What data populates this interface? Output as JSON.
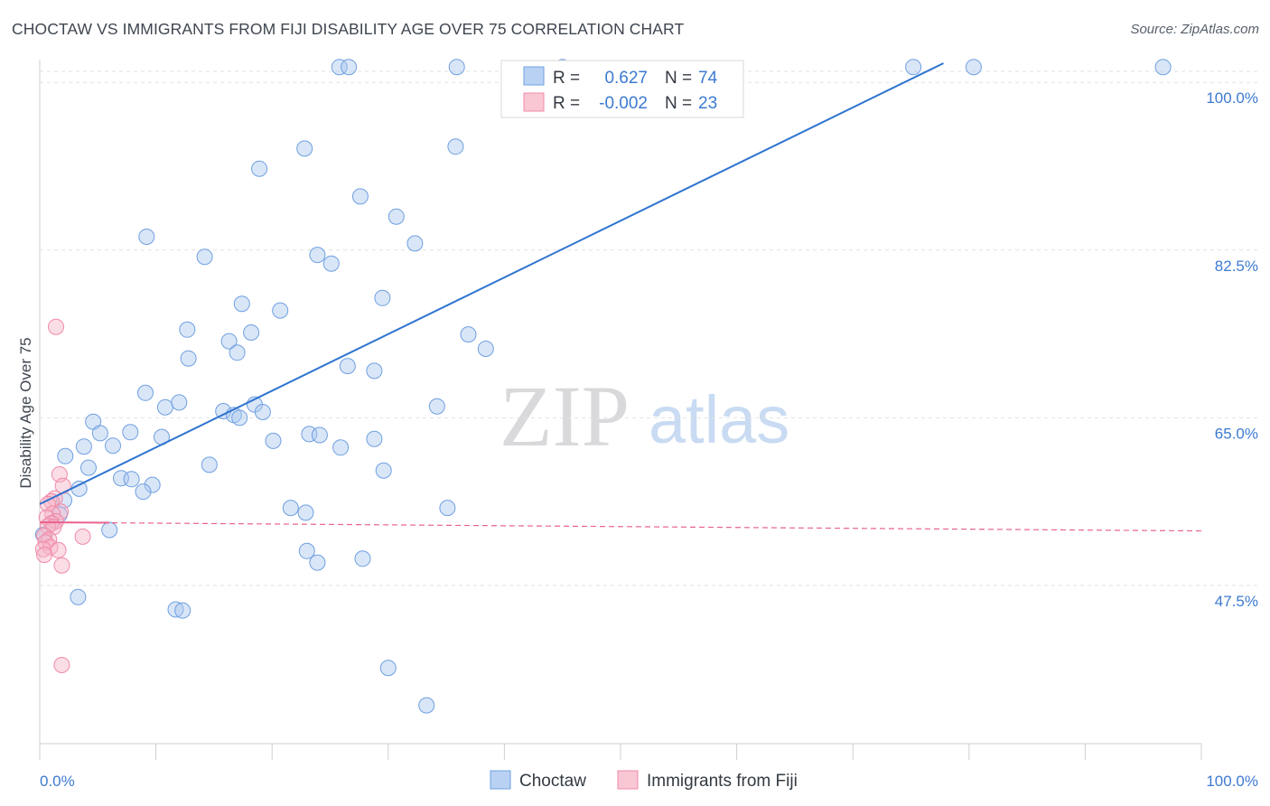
{
  "header": {
    "title": "CHOCTAW VS IMMIGRANTS FROM FIJI DISABILITY AGE OVER 75 CORRELATION CHART",
    "source": "Source: ZipAtlas.com"
  },
  "watermark": {
    "zip": "ZIP",
    "atlas": "atlas"
  },
  "legend_top": {
    "rows": [
      {
        "r_label": "R =",
        "r_value": "0.627",
        "n_label": "N =",
        "n_value": "74",
        "color": "#6fa0e0"
      },
      {
        "r_label": "R =",
        "r_value": "-0.002",
        "n_label": "N =",
        "n_value": "23",
        "color": "#f08aa8"
      }
    ]
  },
  "legend_bottom": {
    "items": [
      "Choctaw",
      "Immigrants from Fiji"
    ]
  },
  "chart_data": {
    "type": "scatter",
    "title": "CHOCTAW VS IMMIGRANTS FROM FIJI DISABILITY AGE OVER 75 CORRELATION CHART",
    "xlabel": "",
    "ylabel": "Disability Age Over 75",
    "xlim": [
      0,
      100
    ],
    "ylim": [
      31,
      102
    ],
    "x_tick_labels": [
      "0.0%",
      "100.0%"
    ],
    "y_tick_labels": [
      "47.5%",
      "65.0%",
      "82.5%",
      "100.0%"
    ],
    "y_ticks": [
      47.5,
      65.0,
      82.5,
      100.0
    ],
    "grid": true,
    "colors": {
      "choctaw": "#6fa0e0",
      "choctaw_line": "#2f74d0",
      "fiji": "#f08aa8",
      "fiji_line": "#e8638d"
    },
    "series": [
      {
        "name": "Choctaw",
        "r": 0.627,
        "n": 74,
        "trend": {
          "x": [
            0,
            77.8
          ],
          "y": [
            56.0,
            102.0
          ]
        },
        "points": [
          [
            25.8,
            101.6
          ],
          [
            26.6,
            101.6
          ],
          [
            35.9,
            101.6
          ],
          [
            45.0,
            101.6
          ],
          [
            75.2,
            101.6
          ],
          [
            80.4,
            101.6
          ],
          [
            96.7,
            101.6
          ],
          [
            22.8,
            93.1
          ],
          [
            35.8,
            93.3
          ],
          [
            18.9,
            91.0
          ],
          [
            27.6,
            88.1
          ],
          [
            30.7,
            86.0
          ],
          [
            9.2,
            83.9
          ],
          [
            32.3,
            83.2
          ],
          [
            14.2,
            81.8
          ],
          [
            23.9,
            82.0
          ],
          [
            25.1,
            81.1
          ],
          [
            29.5,
            77.5
          ],
          [
            17.4,
            76.9
          ],
          [
            20.7,
            76.2
          ],
          [
            12.7,
            74.2
          ],
          [
            16.3,
            73.0
          ],
          [
            18.2,
            73.9
          ],
          [
            36.9,
            73.7
          ],
          [
            38.4,
            72.2
          ],
          [
            17.0,
            71.8
          ],
          [
            12.8,
            71.2
          ],
          [
            26.5,
            70.4
          ],
          [
            28.8,
            69.9
          ],
          [
            9.1,
            67.6
          ],
          [
            10.8,
            66.1
          ],
          [
            12.0,
            66.6
          ],
          [
            15.8,
            65.7
          ],
          [
            16.7,
            65.3
          ],
          [
            18.5,
            66.4
          ],
          [
            19.2,
            65.6
          ],
          [
            17.2,
            65.0
          ],
          [
            34.2,
            66.2
          ],
          [
            4.6,
            64.6
          ],
          [
            5.2,
            63.4
          ],
          [
            7.8,
            63.5
          ],
          [
            10.5,
            63.0
          ],
          [
            20.1,
            62.6
          ],
          [
            14.6,
            60.1
          ],
          [
            23.2,
            63.3
          ],
          [
            24.1,
            63.2
          ],
          [
            3.8,
            62.0
          ],
          [
            6.3,
            62.1
          ],
          [
            25.9,
            61.9
          ],
          [
            28.8,
            62.8
          ],
          [
            2.2,
            61.0
          ],
          [
            4.2,
            59.8
          ],
          [
            29.6,
            59.5
          ],
          [
            7.0,
            58.7
          ],
          [
            7.9,
            58.6
          ],
          [
            9.7,
            58.0
          ],
          [
            3.4,
            57.6
          ],
          [
            2.1,
            56.4
          ],
          [
            8.9,
            57.3
          ],
          [
            35.1,
            55.6
          ],
          [
            1.7,
            54.9
          ],
          [
            21.6,
            55.6
          ],
          [
            22.9,
            55.1
          ],
          [
            1.0,
            54.0
          ],
          [
            6.0,
            53.3
          ],
          [
            23.0,
            51.1
          ],
          [
            27.8,
            50.3
          ],
          [
            23.9,
            49.9
          ],
          [
            3.3,
            46.3
          ],
          [
            11.7,
            45.0
          ],
          [
            12.3,
            44.9
          ],
          [
            30.0,
            38.9
          ],
          [
            33.3,
            35.0
          ],
          [
            0.3,
            52.8
          ]
        ]
      },
      {
        "name": "Immigrants from Fiji",
        "r": -0.002,
        "n": 23,
        "trend": {
          "x": [
            0,
            100
          ],
          "y": [
            54.1,
            53.2
          ]
        },
        "points": [
          [
            1.4,
            74.5
          ],
          [
            1.7,
            59.1
          ],
          [
            2.0,
            57.9
          ],
          [
            1.3,
            56.6
          ],
          [
            1.0,
            56.3
          ],
          [
            0.7,
            56.0
          ],
          [
            1.8,
            55.2
          ],
          [
            1.1,
            55.0
          ],
          [
            0.6,
            54.6
          ],
          [
            1.4,
            54.2
          ],
          [
            1.0,
            54.0
          ],
          [
            0.7,
            53.7
          ],
          [
            1.2,
            53.6
          ],
          [
            0.4,
            52.7
          ],
          [
            0.8,
            52.3
          ],
          [
            3.7,
            52.6
          ],
          [
            0.5,
            52.0
          ],
          [
            0.9,
            51.5
          ],
          [
            0.3,
            51.3
          ],
          [
            1.6,
            51.2
          ],
          [
            0.4,
            50.7
          ],
          [
            1.9,
            49.6
          ],
          [
            1.9,
            39.2
          ]
        ]
      }
    ]
  }
}
